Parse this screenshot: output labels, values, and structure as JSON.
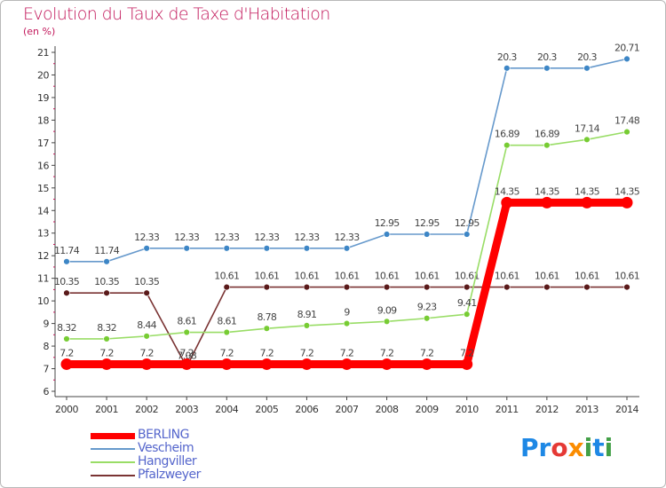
{
  "title": "Evolution du Taux de Taxe d'Habitation",
  "unit_label": "(en %)",
  "logo": {
    "text": "Proxiti",
    "letters": [
      "P",
      "r",
      "o",
      "x",
      "i",
      "t",
      "i"
    ],
    "colors": [
      "#1e88e5",
      "#1e88e5",
      "#e53935",
      "#fb8c00",
      "#43a047",
      "#1e88e5",
      "#43a047"
    ]
  },
  "chart_data": {
    "type": "line",
    "x": [
      "2000",
      "2001",
      "2002",
      "2003",
      "2004",
      "2005",
      "2006",
      "2007",
      "2008",
      "2009",
      "2010",
      "2011",
      "2012",
      "2013",
      "2014"
    ],
    "ylim": [
      6,
      21
    ],
    "yticks": [
      "6",
      "7",
      "8",
      "9",
      "10",
      "11",
      "12",
      "13",
      "14",
      "15",
      "16",
      "17",
      "18",
      "19",
      "20",
      "21"
    ],
    "grid": false,
    "legend_position": "bottom-left",
    "series": [
      {
        "name": "Vescheim",
        "color": "#6699cc",
        "marker": "#3d86c6",
        "values": [
          11.74,
          11.74,
          12.33,
          12.33,
          12.33,
          12.33,
          12.33,
          12.33,
          12.95,
          12.95,
          12.95,
          20.3,
          20.3,
          20.3,
          20.71
        ],
        "labels": [
          "11.74",
          "11.74",
          "12.33",
          "12.33",
          "12.33",
          "12.33",
          "12.33",
          "12.33",
          "12.95",
          "12.95",
          "12.95",
          "20.3",
          "20.3",
          "20.3",
          "20.71"
        ]
      },
      {
        "name": "Pfalzweyer",
        "color": "#7a3333",
        "marker": "#5a1a1a",
        "values": [
          10.35,
          10.35,
          10.35,
          7.08,
          10.61,
          10.61,
          10.61,
          10.61,
          10.61,
          10.61,
          10.61,
          10.61,
          10.61,
          10.61,
          10.61
        ],
        "labels": [
          "10.35",
          "10.35",
          "10.35",
          "7.08",
          "10.61",
          "10.61",
          "10.61",
          "10.61",
          "10.61",
          "10.61",
          "10.61",
          "10.61",
          "10.61",
          "10.61",
          "10.61"
        ]
      },
      {
        "name": "Hangviller",
        "color": "#99dd66",
        "marker": "#77cc33",
        "values": [
          8.32,
          8.32,
          8.44,
          8.61,
          8.61,
          8.78,
          8.91,
          9,
          9.09,
          9.23,
          9.41,
          16.89,
          16.89,
          17.14,
          17.48
        ],
        "labels": [
          "8.32",
          "8.32",
          "8.44",
          "8.61",
          "8.61",
          "8.78",
          "8.91",
          "9",
          "9.09",
          "9.23",
          "9.41",
          "16.89",
          "16.89",
          "17.14",
          "17.48"
        ]
      },
      {
        "name": "BERLING",
        "color": "#ff0000",
        "marker": "#ff0000",
        "values": [
          7.2,
          7.2,
          7.2,
          7.2,
          7.2,
          7.2,
          7.2,
          7.2,
          7.2,
          7.2,
          7.2,
          14.35,
          14.35,
          14.35,
          14.35
        ],
        "labels": [
          "7.2",
          "7.2",
          "7.2",
          "7.2",
          "7.2",
          "7.2",
          "7.2",
          "7.2",
          "7.2",
          "7.2",
          "7.2",
          "14.35",
          "14.35",
          "14.35",
          "14.35"
        ]
      }
    ],
    "legend_order": [
      "BERLING",
      "Vescheim",
      "Hangviller",
      "Pfalzweyer"
    ]
  }
}
